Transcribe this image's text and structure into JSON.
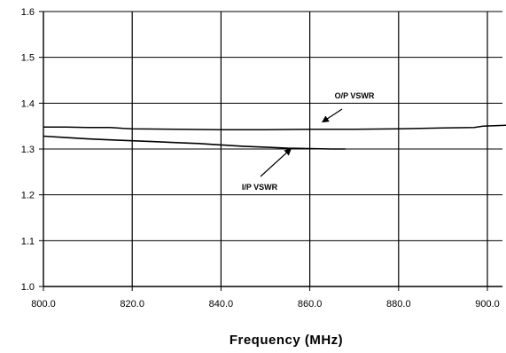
{
  "chart_data": {
    "type": "line",
    "xlabel": "Frequency (MHz)",
    "ylabel": "",
    "xlim": [
      800,
      900
    ],
    "ylim": [
      1.0,
      1.6
    ],
    "x_ticks": [
      "800.0",
      "820.0",
      "840.0",
      "860.0",
      "880.0",
      "900.0"
    ],
    "y_ticks": [
      "1.0",
      "1.1",
      "1.2",
      "1.3",
      "1.4",
      "1.5",
      "1.6"
    ],
    "grid": true,
    "series": [
      {
        "name": "O/P VSWR",
        "x": [
          800,
          805,
          810,
          815,
          818,
          820,
          830,
          840,
          850,
          860,
          870,
          880,
          890,
          897,
          899,
          905
        ],
        "y": [
          1.348,
          1.348,
          1.347,
          1.347,
          1.345,
          1.344,
          1.343,
          1.342,
          1.342,
          1.343,
          1.343,
          1.344,
          1.346,
          1.347,
          1.35,
          1.352
        ]
      },
      {
        "name": "I/P VSWR",
        "x": [
          800,
          805,
          810,
          815,
          820,
          825,
          830,
          835,
          840,
          845,
          850,
          855,
          860,
          865,
          868
        ],
        "y": [
          1.328,
          1.325,
          1.322,
          1.32,
          1.318,
          1.316,
          1.314,
          1.312,
          1.309,
          1.306,
          1.304,
          1.302,
          1.301,
          1.3,
          1.3
        ]
      }
    ],
    "annotations": [
      {
        "text": "O/P VSWR",
        "series": "O/P VSWR",
        "arrow_to": [
          863,
          1.36
        ]
      },
      {
        "text": "I/P VSWR",
        "series": "I/P VSWR",
        "arrow_to": [
          856,
          1.303
        ]
      }
    ]
  }
}
